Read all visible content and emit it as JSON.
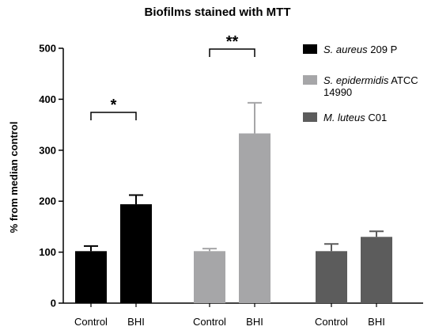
{
  "chart_data": {
    "type": "bar",
    "title": "Biofilms stained with MTT",
    "xlabel": "",
    "ylabel": "% from median control",
    "ylim": [
      0,
      500
    ],
    "yticks": [
      0,
      100,
      200,
      300,
      400,
      500
    ],
    "grid": false,
    "legend_position": "right",
    "groups": [
      {
        "series": "S. aureus 209 P",
        "color": "#000000",
        "bars": [
          {
            "category": "Control",
            "value": 102,
            "error": 10
          },
          {
            "category": "BHI",
            "value": 194,
            "error": 18
          }
        ],
        "significance": "*"
      },
      {
        "series": "S. epidermidis ATCC 14990",
        "color": "#a6a6a8",
        "bars": [
          {
            "category": "Control",
            "value": 102,
            "error": 5
          },
          {
            "category": "BHI",
            "value": 333,
            "error": 60
          }
        ],
        "significance": "**"
      },
      {
        "series": "M. luteus C01",
        "color": "#5c5c5c",
        "bars": [
          {
            "category": "Control",
            "value": 102,
            "error": 14
          },
          {
            "category": "BHI",
            "value": 130,
            "error": 11
          }
        ],
        "significance": ""
      }
    ],
    "legend": [
      {
        "italic": "S. aureus",
        "plain": " 209 P",
        "plain2": "",
        "color": "#000000"
      },
      {
        "italic": "S. epidermidis",
        "plain": " ATCC",
        "plain2": "14990",
        "color": "#a6a6a8"
      },
      {
        "italic": "M. luteus",
        "plain": " C01",
        "plain2": "",
        "color": "#5c5c5c"
      }
    ]
  }
}
